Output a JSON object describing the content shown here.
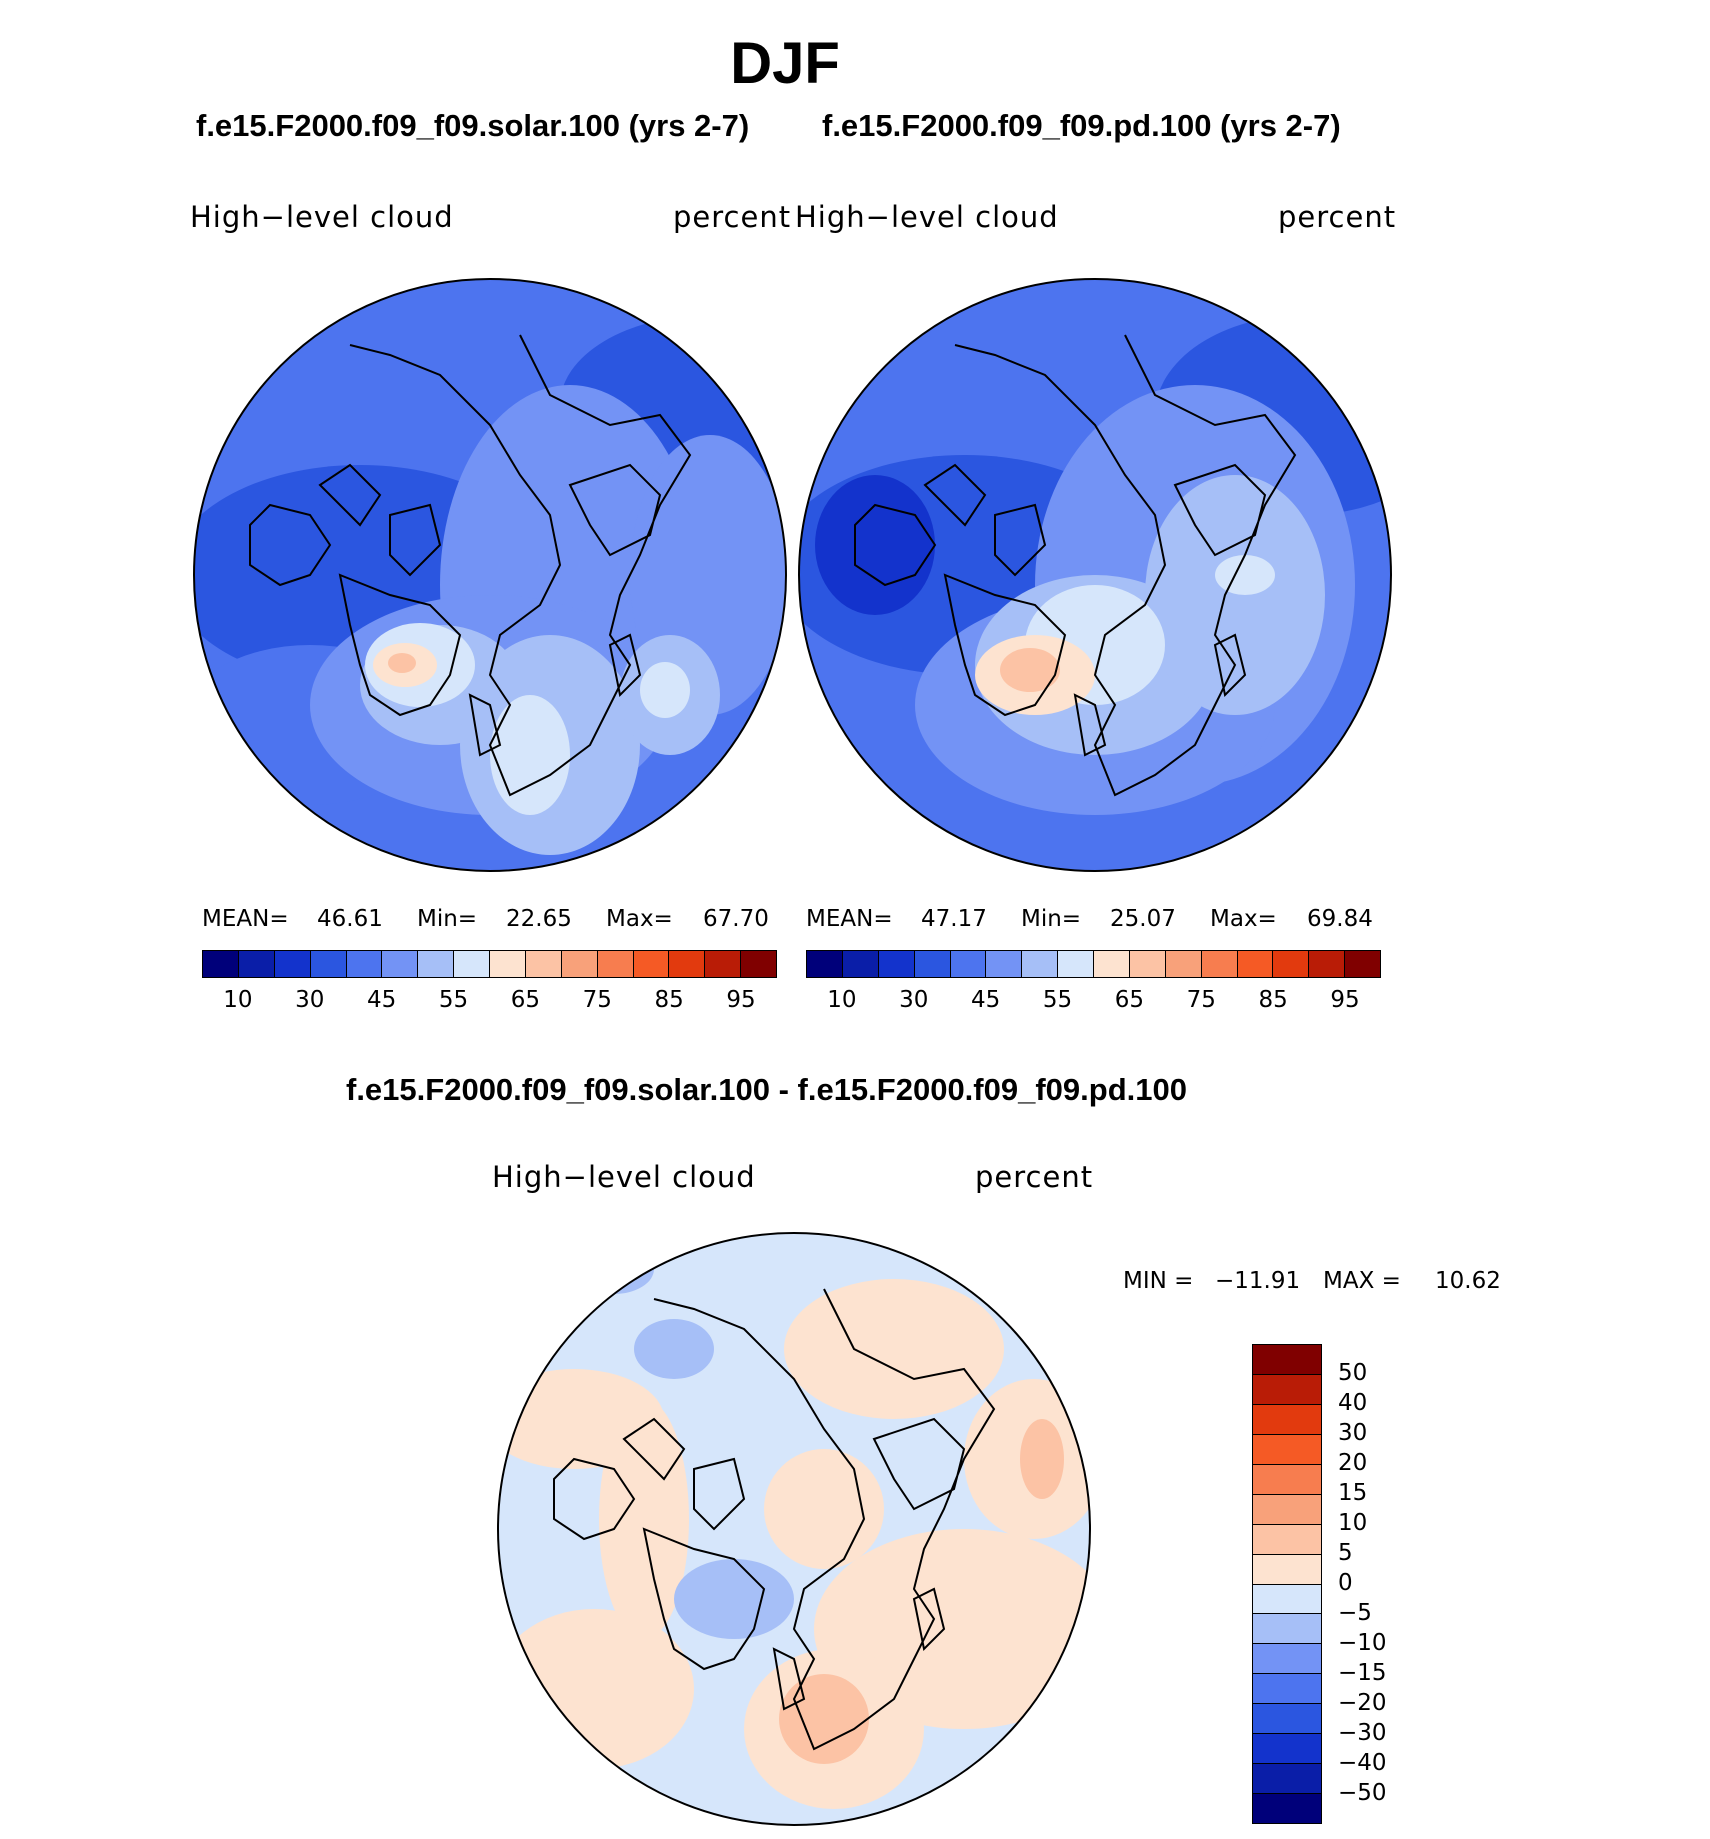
{
  "title": "DJF",
  "panels": [
    {
      "case": "f.e15.F2000.f09_f09.solar.100 (yrs 2-7)",
      "variable": "High−level  cloud",
      "units": "percent",
      "stats": {
        "mean_label": "MEAN=",
        "mean": "46.61",
        "min_label": "Min=",
        "min": "22.65",
        "max_label": "Max=",
        "max": "67.70"
      }
    },
    {
      "case": "f.e15.F2000.f09_f09.pd.100 (yrs 2-7)",
      "variable": "High−level  cloud",
      "units": "percent",
      "stats": {
        "mean_label": "MEAN=",
        "mean": "47.17",
        "min_label": "Min=",
        "min": "25.07",
        "max_label": "Max=",
        "max": "69.84"
      }
    }
  ],
  "abs_colorbar": {
    "colors": [
      "#00007a",
      "#0a1ea8",
      "#1333cc",
      "#2b56e0",
      "#4d74ef",
      "#7393f5",
      "#a6bff7",
      "#d6e6fb",
      "#fde3d0",
      "#fcc3a5",
      "#f8a17a",
      "#f77d4f",
      "#f55a25",
      "#e23a0e",
      "#b91c06",
      "#800000"
    ],
    "labels": [
      "10",
      "30",
      "45",
      "55",
      "65",
      "75",
      "85",
      "95"
    ]
  },
  "diff": {
    "title": "f.e15.F2000.f09_f09.solar.100 - f.e15.F2000.f09_f09.pd.100",
    "variable": "High−level  cloud",
    "units": "percent",
    "min_label": "MIN = ",
    "min": "−11.91",
    "max_label": "MAX = ",
    "max": "10.62",
    "colorbar": {
      "colors_top_to_bottom": [
        "#800000",
        "#b91c06",
        "#e23a0e",
        "#f55a25",
        "#f77d4f",
        "#f8a17a",
        "#fcc3a5",
        "#fde3d0",
        "#d6e6fb",
        "#a6bff7",
        "#7393f5",
        "#4d74ef",
        "#2b56e0",
        "#1333cc",
        "#0a1ea8",
        "#00007a"
      ],
      "labels": [
        "50",
        "40",
        "30",
        "20",
        "15",
        "10",
        "5",
        "0",
        "−5",
        "−10",
        "−15",
        "−20",
        "−30",
        "−40",
        "−50"
      ]
    }
  }
}
